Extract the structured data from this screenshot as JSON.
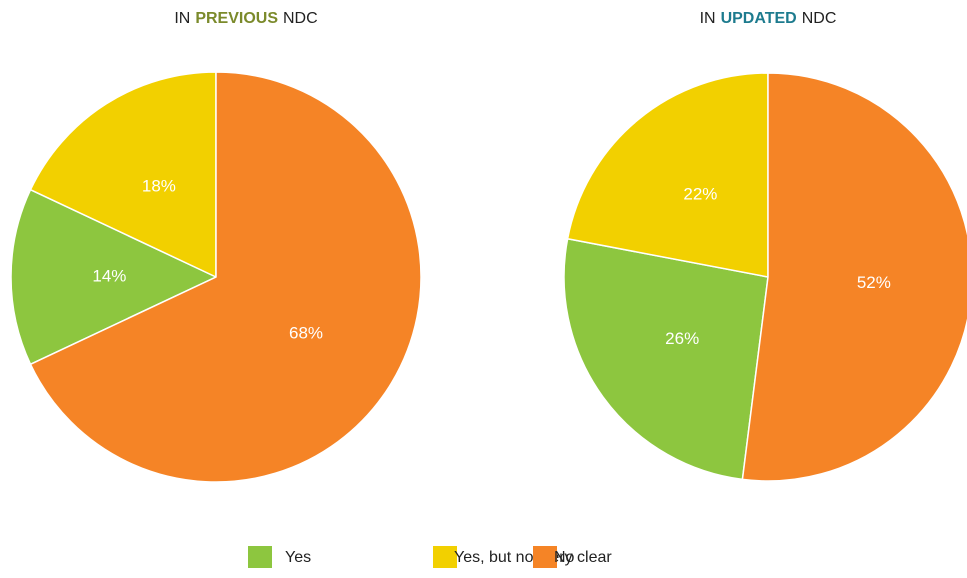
{
  "chart_data": [
    {
      "type": "pie",
      "title": [
        "IN",
        "PREVIOUS",
        "NDC"
      ],
      "highlight_color": "#7b8a2b",
      "values": [
        14,
        18,
        68
      ],
      "value_labels": [
        "14%",
        "18%",
        "68%"
      ]
    },
    {
      "type": "pie",
      "title": [
        "IN",
        "UPDATED",
        "NDC"
      ],
      "highlight_color": "#1d7b8e",
      "values": [
        26,
        22,
        52
      ],
      "value_labels": [
        "26%",
        "22%",
        "52%"
      ]
    }
  ],
  "legend": {
    "categories": [
      "Yes",
      "Yes, but not very clear",
      "No"
    ],
    "colors": [
      "#8dc63f",
      "#f2d000",
      "#f58426"
    ]
  }
}
